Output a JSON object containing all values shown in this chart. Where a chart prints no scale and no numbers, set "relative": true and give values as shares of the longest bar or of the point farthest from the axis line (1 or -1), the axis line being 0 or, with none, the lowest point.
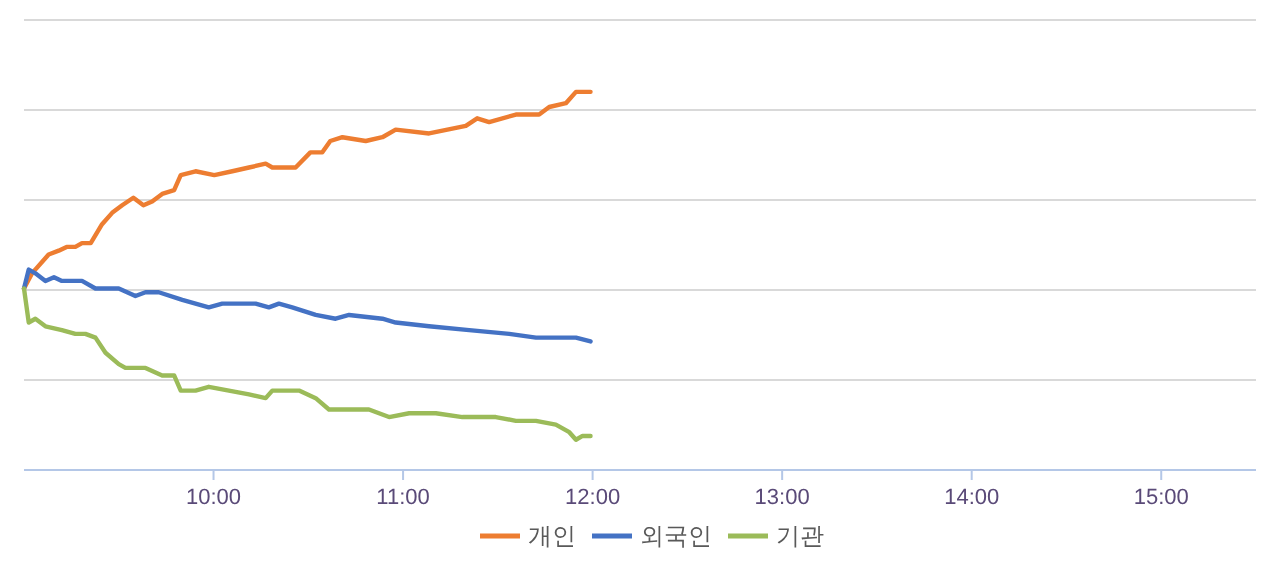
{
  "chart_data": {
    "type": "line",
    "relative": true,
    "xlim": [
      9,
      15.5
    ],
    "xticks": [
      {
        "value": 10,
        "label": "10:00"
      },
      {
        "value": 11,
        "label": "11:00"
      },
      {
        "value": 12,
        "label": "12:00"
      },
      {
        "value": 13,
        "label": "13:00"
      },
      {
        "value": 14,
        "label": "14:00"
      },
      {
        "value": 15,
        "label": "15:00"
      }
    ],
    "grid": "y",
    "legend": "bottom",
    "line_style": "solid",
    "marker": "none",
    "series": [
      {
        "name": "개인",
        "color": "#ed7d31",
        "x": [
          9.0,
          9.042,
          9.13,
          9.183,
          9.225,
          9.271,
          9.306,
          9.352,
          9.412,
          9.465,
          9.518,
          9.577,
          9.63,
          9.676,
          9.729,
          9.792,
          9.827,
          9.905,
          10.004,
          10.099,
          10.187,
          10.275,
          10.31,
          10.363,
          10.433,
          10.511,
          10.574,
          10.616,
          10.68,
          10.803,
          10.891,
          10.961,
          11.137,
          11.331,
          11.391,
          11.454,
          11.595,
          11.718,
          11.771,
          11.859,
          11.912,
          11.989
        ],
        "values": [
          0.48,
          0.52,
          0.57,
          0.58,
          0.59,
          0.59,
          0.6,
          0.6,
          0.65,
          0.68,
          0.7,
          0.72,
          0.7,
          0.71,
          0.73,
          0.74,
          0.78,
          0.79,
          0.78,
          0.79,
          0.8,
          0.81,
          0.8,
          0.8,
          0.8,
          0.84,
          0.84,
          0.87,
          0.88,
          0.87,
          0.88,
          0.9,
          0.89,
          0.91,
          0.93,
          0.92,
          0.94,
          0.94,
          0.96,
          0.97,
          1.0,
          1.0
        ]
      },
      {
        "name": "외국인",
        "color": "#4472c4",
        "x": [
          9.0,
          9.025,
          9.06,
          9.113,
          9.158,
          9.2,
          9.306,
          9.377,
          9.5,
          9.588,
          9.641,
          9.711,
          9.835,
          9.975,
          10.046,
          10.099,
          10.222,
          10.292,
          10.345,
          10.415,
          10.539,
          10.644,
          10.715,
          10.891,
          10.961,
          11.137,
          11.349,
          11.56,
          11.701,
          11.842,
          11.912,
          11.989
        ],
        "values": [
          0.48,
          0.53,
          0.52,
          0.5,
          0.51,
          0.5,
          0.5,
          0.48,
          0.48,
          0.46,
          0.47,
          0.47,
          0.45,
          0.43,
          0.44,
          0.44,
          0.44,
          0.43,
          0.44,
          0.43,
          0.41,
          0.4,
          0.41,
          0.4,
          0.39,
          0.38,
          0.37,
          0.36,
          0.35,
          0.35,
          0.35,
          0.34
        ]
      },
      {
        "name": "기관",
        "color": "#9bbb59",
        "x": [
          9.0,
          9.025,
          9.06,
          9.113,
          9.2,
          9.271,
          9.324,
          9.377,
          9.43,
          9.5,
          9.535,
          9.641,
          9.729,
          9.792,
          9.827,
          9.905,
          9.975,
          10.081,
          10.187,
          10.275,
          10.31,
          10.451,
          10.539,
          10.609,
          10.715,
          10.82,
          10.926,
          11.032,
          11.173,
          11.313,
          11.489,
          11.595,
          11.701,
          11.806,
          11.877,
          11.912,
          11.947,
          11.989
        ],
        "values": [
          0.48,
          0.39,
          0.4,
          0.38,
          0.37,
          0.36,
          0.36,
          0.35,
          0.31,
          0.28,
          0.27,
          0.27,
          0.25,
          0.25,
          0.21,
          0.21,
          0.22,
          0.21,
          0.2,
          0.19,
          0.21,
          0.21,
          0.19,
          0.16,
          0.16,
          0.16,
          0.14,
          0.15,
          0.15,
          0.14,
          0.14,
          0.13,
          0.13,
          0.12,
          0.1,
          0.08,
          0.09,
          0.09
        ]
      }
    ]
  }
}
